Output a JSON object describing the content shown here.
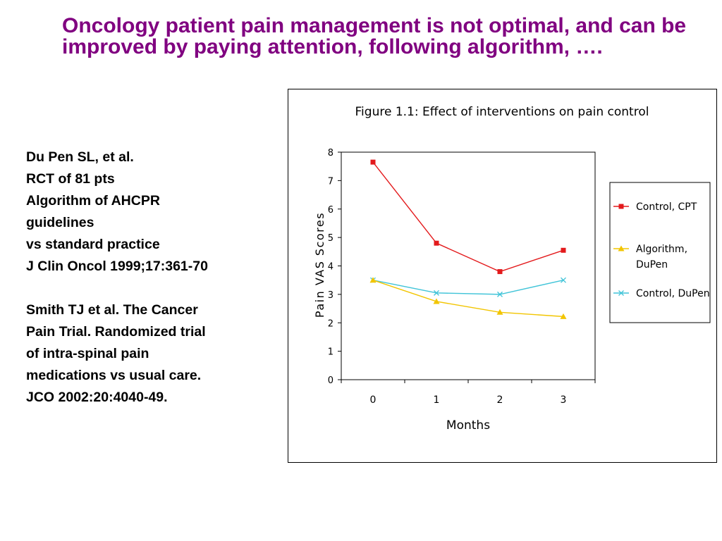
{
  "slide": {
    "title": "Oncology patient pain management is not optimal, and can be improved by paying attention, following algorithm, ….",
    "refs": [
      "Du Pen SL, et al.",
      "RCT of 81 pts",
      "Algorithm of AHCPR",
      "guidelines",
      "vs standard practice",
      "J Clin Oncol 1999;17:361-70",
      "",
      "Smith TJ et al. The Cancer",
      "Pain Trial. Randomized trial",
      "of intra-spinal pain",
      "medications vs usual care.",
      "JCO 2002:20:4040-49."
    ]
  },
  "chart_data": {
    "type": "line",
    "title": "Figure 1.1: Effect of interventions on pain control",
    "xlabel": "Months",
    "ylabel": "Pain VAS Scores",
    "categories": [
      "0",
      "1",
      "2",
      "3"
    ],
    "ylim": [
      0,
      8
    ],
    "yticks": [
      "0",
      "1",
      "2",
      "3",
      "4",
      "5",
      "6",
      "7",
      "8"
    ],
    "grid": false,
    "legend_position": "right",
    "series": [
      {
        "name": "Control, CPT",
        "values": [
          7.65,
          4.8,
          3.8,
          4.55
        ],
        "color": "#e31a1c",
        "marker": "square"
      },
      {
        "name": "Algorithm, DuPen",
        "name_lines": [
          "Algorithm,",
          "DuPen"
        ],
        "values": [
          3.5,
          2.75,
          2.37,
          2.22
        ],
        "color": "#f2c500",
        "marker": "triangle"
      },
      {
        "name": "Control, DuPen",
        "values": [
          3.5,
          3.05,
          3.0,
          3.5
        ],
        "color": "#40c4d8",
        "marker": "x"
      }
    ]
  }
}
